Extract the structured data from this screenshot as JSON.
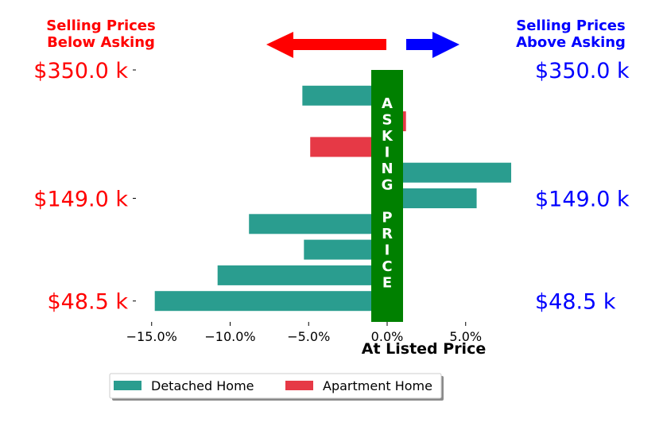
{
  "chart_data": {
    "type": "bar",
    "orientation": "horizontal",
    "xlabel": "At Listed Price",
    "xlim": [
      -16.5,
      8.5
    ],
    "xticks": [
      -15,
      -10,
      -5,
      0,
      5
    ],
    "xtick_labels": [
      "−15.0%",
      "−10.0%",
      "−5.0%",
      "0.0%",
      "5.0%"
    ],
    "grid": false,
    "left_title_lines": [
      "Selling Prices",
      "Below Asking"
    ],
    "right_title_lines": [
      "Selling Prices",
      "Above Asking"
    ],
    "band_text": "ASKING PRICE",
    "price_labels": [
      "$350.0 k",
      "$149.0 k",
      "$48.5 k"
    ],
    "price_label_rows": [
      0,
      5,
      9
    ],
    "series": [
      {
        "name": "Detached Home",
        "color": "#2a9d8f",
        "bars": [
          {
            "row": 1,
            "value": -5.4
          },
          {
            "row": 4,
            "value": 7.9
          },
          {
            "row": 5,
            "value": 5.7
          },
          {
            "row": 6,
            "value": -8.8
          },
          {
            "row": 7,
            "value": -5.3
          },
          {
            "row": 8,
            "value": -10.8
          },
          {
            "row": 9,
            "value": -14.8
          }
        ]
      },
      {
        "name": "Apartment Home",
        "color": "#e63946",
        "bars": [
          {
            "row": 2,
            "value": 1.2
          },
          {
            "row": 3,
            "value": -4.9
          }
        ]
      }
    ],
    "legend_position": "bottom-center",
    "colors": {
      "below": "#ff0000",
      "above": "#0000ff",
      "asking_band": "#008000"
    }
  }
}
